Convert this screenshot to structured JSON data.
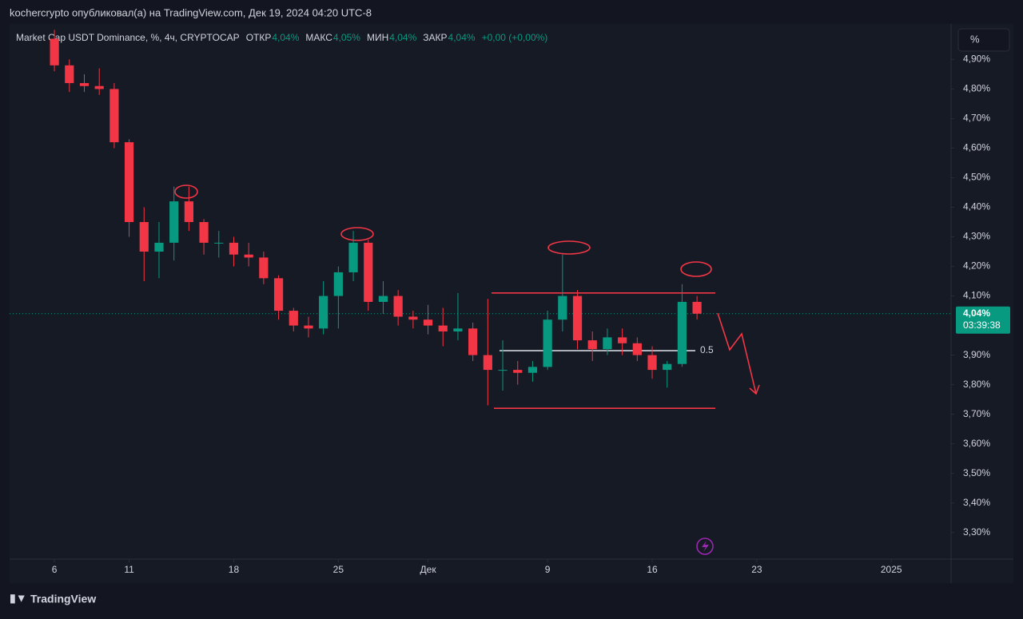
{
  "header": {
    "publisher": "kochercrypto опубликовал(а) на TradingView.com, Дек 19, 2024 04:20 UTC-8",
    "logo": "TradingView",
    "scale_button": "%"
  },
  "legend": {
    "symbol": "Market Cap USDT Dominance, %, 4ч, CRYPTOCAP",
    "open_label": "ОТКР",
    "open": "4,04%",
    "high_label": "МАКС",
    "high": "4,05%",
    "low_label": "МИН",
    "low": "4,04%",
    "close_label": "ЗАКР",
    "close": "4,04%",
    "change": "+0,00 (+0,00%)"
  },
  "chart_data": {
    "type": "candlestick",
    "up_color": "#089981",
    "down_color": "#f23645",
    "x": [
      "2024-11-06",
      "2024-11-07",
      "2024-11-08",
      "2024-11-09",
      "2024-11-10",
      "2024-11-11",
      "2024-11-12",
      "2024-11-13",
      "2024-11-14",
      "2024-11-15",
      "2024-11-16",
      "2024-11-17",
      "2024-11-18",
      "2024-11-19",
      "2024-11-20",
      "2024-11-21",
      "2024-11-22",
      "2024-11-23",
      "2024-11-24",
      "2024-11-25",
      "2024-11-26",
      "2024-11-27",
      "2024-11-28",
      "2024-11-29",
      "2024-11-30",
      "2024-12-01",
      "2024-12-02",
      "2024-12-03",
      "2024-12-04",
      "2024-12-05",
      "2024-12-06",
      "2024-12-07",
      "2024-12-08",
      "2024-12-09",
      "2024-12-10",
      "2024-12-11",
      "2024-12-12",
      "2024-12-13",
      "2024-12-14",
      "2024-12-15",
      "2024-12-16",
      "2024-12-17",
      "2024-12-18",
      "2024-12-19"
    ],
    "open": [
      4.97,
      4.88,
      4.82,
      4.81,
      4.8,
      4.62,
      4.35,
      4.25,
      4.28,
      4.42,
      4.35,
      4.28,
      4.28,
      4.24,
      4.23,
      4.16,
      4.05,
      4.0,
      3.99,
      4.1,
      4.18,
      4.28,
      4.08,
      4.1,
      4.03,
      4.02,
      4.0,
      3.98,
      3.99,
      3.9,
      3.85,
      3.85,
      3.84,
      3.86,
      4.02,
      4.1,
      3.95,
      3.92,
      3.96,
      3.94,
      3.9,
      3.85,
      3.87,
      4.08
    ],
    "high": [
      5.0,
      4.9,
      4.85,
      4.87,
      4.82,
      4.63,
      4.4,
      4.35,
      4.47,
      4.47,
      4.36,
      4.32,
      4.3,
      4.28,
      4.25,
      4.17,
      4.06,
      4.03,
      4.15,
      4.2,
      4.32,
      4.29,
      4.15,
      4.12,
      4.05,
      4.07,
      4.06,
      4.11,
      4.01,
      4.09,
      3.95,
      3.88,
      3.88,
      4.05,
      4.24,
      4.12,
      3.98,
      3.99,
      3.99,
      3.96,
      3.93,
      3.88,
      4.14,
      4.1
    ],
    "low": [
      4.86,
      4.79,
      4.79,
      4.78,
      4.6,
      4.3,
      4.15,
      4.16,
      4.22,
      4.32,
      4.24,
      4.23,
      4.2,
      4.2,
      4.14,
      4.02,
      3.98,
      3.96,
      3.97,
      3.99,
      4.15,
      4.05,
      4.04,
      4.0,
      3.99,
      3.97,
      3.93,
      3.95,
      3.88,
      3.73,
      3.78,
      3.8,
      3.81,
      3.85,
      3.98,
      3.92,
      3.88,
      3.9,
      3.9,
      3.88,
      3.82,
      3.79,
      3.86,
      4.02
    ],
    "close": [
      4.88,
      4.82,
      4.81,
      4.8,
      4.62,
      4.35,
      4.25,
      4.28,
      4.42,
      4.35,
      4.28,
      4.28,
      4.24,
      4.23,
      4.16,
      4.05,
      4.0,
      3.99,
      4.1,
      4.18,
      4.28,
      4.08,
      4.1,
      4.03,
      4.02,
      4.0,
      3.98,
      3.99,
      3.9,
      3.85,
      3.85,
      3.84,
      3.86,
      4.02,
      4.1,
      3.95,
      3.92,
      3.96,
      3.94,
      3.9,
      3.85,
      3.87,
      4.08,
      4.04
    ],
    "xlim": [
      "2024-11-03",
      "2025-01-05"
    ],
    "xticks": [
      {
        "value": "2024-11-06",
        "label": "6"
      },
      {
        "value": "2024-11-11",
        "label": "11"
      },
      {
        "value": "2024-11-18",
        "label": "18"
      },
      {
        "value": "2024-11-25",
        "label": "25"
      },
      {
        "value": "2024-12-01",
        "label": "Дек"
      },
      {
        "value": "2024-12-09",
        "label": "9"
      },
      {
        "value": "2024-12-16",
        "label": "16"
      },
      {
        "value": "2024-12-23",
        "label": "23"
      },
      {
        "value": "2025-01-01",
        "label": "2025"
      }
    ],
    "ylim": [
      3.21,
      5.02
    ],
    "yticks": [
      {
        "value": 4.9,
        "label": "4,90%"
      },
      {
        "value": 4.8,
        "label": "4,80%"
      },
      {
        "value": 4.7,
        "label": "4,70%"
      },
      {
        "value": 4.6,
        "label": "4,60%"
      },
      {
        "value": 4.5,
        "label": "4,50%"
      },
      {
        "value": 4.4,
        "label": "4,40%"
      },
      {
        "value": 4.3,
        "label": "4,30%"
      },
      {
        "value": 4.2,
        "label": "4,20%"
      },
      {
        "value": 4.1,
        "label": "4,10%"
      },
      {
        "value": 3.9,
        "label": "3,90%"
      },
      {
        "value": 3.8,
        "label": "3,80%"
      },
      {
        "value": 3.7,
        "label": "3,70%"
      },
      {
        "value": 3.6,
        "label": "3,60%"
      },
      {
        "value": 3.5,
        "label": "3,50%"
      },
      {
        "value": 3.4,
        "label": "3,40%"
      },
      {
        "value": 3.3,
        "label": "3,30%"
      }
    ],
    "last_price": {
      "value": 4.04,
      "label": "4,04%",
      "countdown": "03:39:38"
    },
    "levels": [
      {
        "value": 4.11,
        "color": "#f23645"
      },
      {
        "value": 3.915,
        "color": "#d1d4dc",
        "label": "0.5"
      },
      {
        "value": 3.72,
        "color": "#f23645"
      }
    ],
    "grid": false
  }
}
